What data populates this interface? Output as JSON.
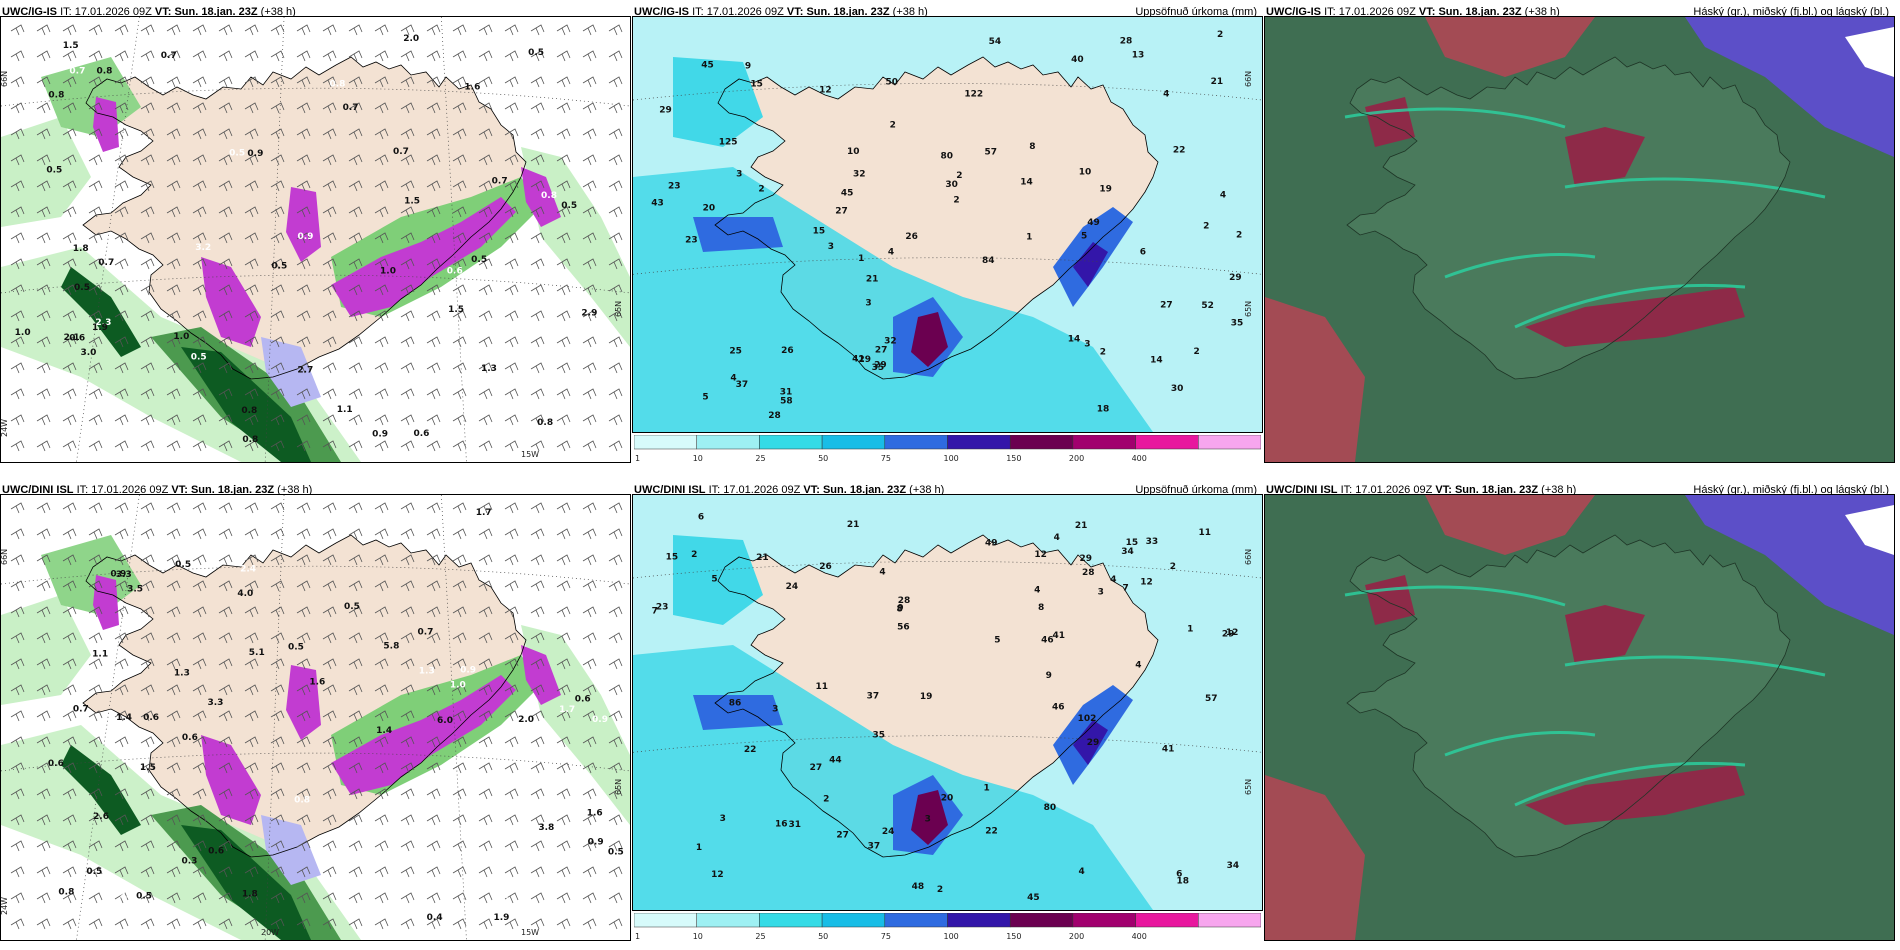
{
  "panels": [
    {
      "model": "UWC/IG-IS",
      "it_label": "IT:",
      "it_value": "17.01.2026 09Z",
      "vt_label": "VT:",
      "vt_value": "Sun. 18.jan. 23Z",
      "lead": "(+38 h)",
      "right_title": "",
      "coords": [
        "66N",
        "65N",
        "24W",
        "15W"
      ],
      "numbers": [
        "0.6",
        "0.8",
        "0.7",
        "0.5",
        "0.6",
        "0.5",
        "0.9",
        "0.8",
        "0.7",
        "0.8",
        "0.5",
        "1.0",
        "0.9",
        "0.6",
        "0.5",
        "0.8",
        "2.0",
        "2.1",
        "1.8",
        "3.0",
        "1.1",
        "0.7",
        "3.2",
        "2.7",
        "1.5",
        "0.9",
        "2.3",
        "1.9",
        "0.8",
        "1.3",
        "1.0",
        "1.6",
        "1.5",
        "0.8",
        "0.5",
        "1.0",
        "0.9",
        "2.9",
        "1.5",
        "0.7",
        "0.5",
        "0.7",
        "0.5",
        "0.8",
        "0.5",
        "0.7"
      ]
    },
    {
      "model": "UWC/IG-IS",
      "it_label": "IT:",
      "it_value": "17.01.2026 09Z",
      "vt_label": "VT:",
      "vt_value": "Sun. 18.jan. 23Z",
      "lead": "(+38 h)",
      "right_title": "Uppsöfnuð úrkoma (mm)",
      "coords": [
        "66N",
        "65N"
      ],
      "numbers": [
        "40",
        "45",
        "32",
        "27",
        "13",
        "3",
        "6",
        "15",
        "10",
        "21",
        "18",
        "14",
        "32",
        "30",
        "43",
        "45",
        "22",
        "29",
        "21",
        "20",
        "52",
        "26",
        "27",
        "28",
        "15",
        "30",
        "25",
        "26",
        "29",
        "23",
        "29",
        "19",
        "27",
        "29",
        "23",
        "31",
        "14",
        "122",
        "125",
        "49",
        "54",
        "41",
        "50",
        "80",
        "58",
        "9",
        "14",
        "5",
        "3",
        "3",
        "12",
        "10",
        "4",
        "4",
        "2",
        "1",
        "2",
        "2",
        "2",
        "3",
        "2",
        "37",
        "35",
        "57",
        "84",
        "28",
        "35",
        "2",
        "2",
        "4",
        "1",
        "5",
        "8",
        "4",
        "2",
        "2"
      ]
    },
    {
      "model": "UWC/IG-IS",
      "it_label": "IT:",
      "it_value": "17.01.2026 09Z",
      "vt_label": "VT:",
      "vt_value": "Sun. 18.jan. 23Z",
      "lead": "(+38 h)",
      "right_title": "Háský (gr.), miðský (fj.bl.) og lágský (bl.)",
      "coords": [],
      "numbers": []
    },
    {
      "model": "UWC/DINI ISL",
      "it_label": "IT:",
      "it_value": "17.01.2026 09Z",
      "vt_label": "VT:",
      "vt_value": "Sun. 18.jan. 23Z",
      "lead": "(+38 h)",
      "right_title": "",
      "coords": [
        "66N",
        "65N",
        "24W",
        "20W",
        "15W"
      ],
      "numbers": [
        "0.6",
        "0.7",
        "0.5",
        "0.6",
        "0.8",
        "0.7",
        "0.5",
        "0.3",
        "0.5",
        "1.5",
        "0.9",
        "0.8",
        "1.1",
        "2.4",
        "1.6",
        "0.6",
        "1.7",
        "2.0",
        "1.7",
        "5.1",
        "6.0",
        "1.3",
        "1.6",
        "1.9",
        "1.4",
        "3.3",
        "4.0",
        "3.3",
        "2.6",
        "1.3",
        "0.6",
        "1.4",
        "0.9",
        "0.5",
        "0.4",
        "0.8",
        "0.9",
        "0.6",
        "0.5",
        "1.0",
        "0.9",
        "2.1",
        "3.5",
        "5.8",
        "3.8",
        "1.8",
        "0.5",
        "0.6"
      ]
    },
    {
      "model": "UWC/DINI ISL",
      "it_label": "IT:",
      "it_value": "17.01.2026 09Z",
      "vt_label": "VT:",
      "vt_value": "Sun. 18.jan. 23Z",
      "lead": "(+38 h)",
      "right_title": "Uppsöfnuð úrkoma (mm)",
      "coords": [
        "66N",
        "65N"
      ],
      "numbers": [
        "35",
        "34",
        "27",
        "44",
        "2",
        "1",
        "21",
        "16",
        "18",
        "15",
        "20",
        "7",
        "15",
        "12",
        "34",
        "37",
        "23",
        "22",
        "86",
        "57",
        "80",
        "46",
        "28",
        "8",
        "27",
        "29",
        "22",
        "24",
        "26",
        "24",
        "31",
        "29",
        "29",
        "21",
        "37",
        "41",
        "49",
        "1",
        "102",
        "21",
        "45",
        "56",
        "12",
        "11",
        "12",
        "8",
        "3",
        "3",
        "5",
        "3",
        "7",
        "9",
        "4",
        "19",
        "46",
        "41",
        "48",
        "28",
        "3",
        "6",
        "11",
        "4",
        "4",
        "5",
        "6",
        "4",
        "4",
        "2",
        "2",
        "4",
        "2",
        "1",
        "9",
        "12",
        "33"
      ]
    },
    {
      "model": "UWC/DINI ISL",
      "it_label": "IT:",
      "it_value": "17.01.2026 09Z",
      "vt_label": "VT:",
      "vt_value": "Sun. 18.jan. 23Z",
      "lead": "(+38 h)",
      "right_title": "Háský (gr.), miðský (fj.bl.) og lágský (bl.)",
      "coords": [],
      "numbers": []
    }
  ],
  "colorbar": {
    "labels": [
      "1",
      "10",
      "25",
      "50",
      "75",
      "100",
      "150",
      "200",
      "400"
    ],
    "colors": [
      "#d7fbfb",
      "#9ef0f3",
      "#35dbe6",
      "#18bde6",
      "#2f6be0",
      "#3316a9",
      "#6b0050",
      "#a1006e",
      "#e8179e",
      "#f7a6ee"
    ]
  },
  "colors": {
    "land": "#f3e2d3",
    "precip_light": "#b8f2f6",
    "precip_mid": "#41d8e8",
    "snow_light": "#c9f0c6",
    "snow_dark": "#0d5b22",
    "snow_purple": "#c23cd1",
    "cloud_high": "#3f6e52",
    "cloud_mid": "#b54555",
    "cloud_low": "#5c4fc8"
  }
}
